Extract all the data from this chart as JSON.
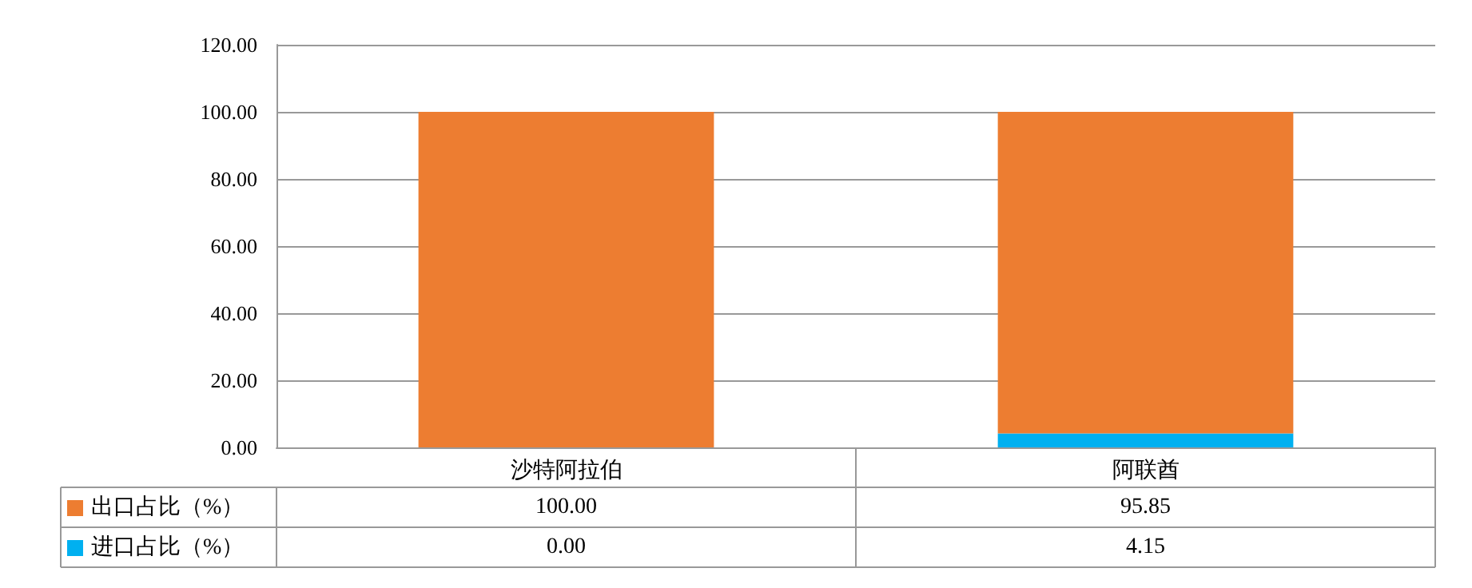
{
  "chart_data": {
    "type": "bar",
    "stacked": true,
    "categories": [
      "沙特阿拉伯",
      "阿联酋"
    ],
    "series": [
      {
        "name": "进口占比（%）",
        "color": "#00b0f0",
        "values": [
          0,
          4.15
        ],
        "value_labels": [
          "0.00",
          "4.15"
        ]
      },
      {
        "name": "出口占比（%）",
        "color": "#ed7d31",
        "values": [
          100,
          95.85
        ],
        "value_labels": [
          "100.00",
          "95.85"
        ]
      }
    ],
    "ylim": [
      0,
      120
    ],
    "yticks": [
      {
        "value": 0,
        "label": "0.00"
      },
      {
        "value": 20,
        "label": "20.00"
      },
      {
        "value": 40,
        "label": "40.00"
      },
      {
        "value": 60,
        "label": "60.00"
      },
      {
        "value": 80,
        "label": "80.00"
      },
      {
        "value": 100,
        "label": "100.00"
      },
      {
        "value": 120,
        "label": "120.00"
      }
    ],
    "grid": "y",
    "legend": "bottom left"
  }
}
